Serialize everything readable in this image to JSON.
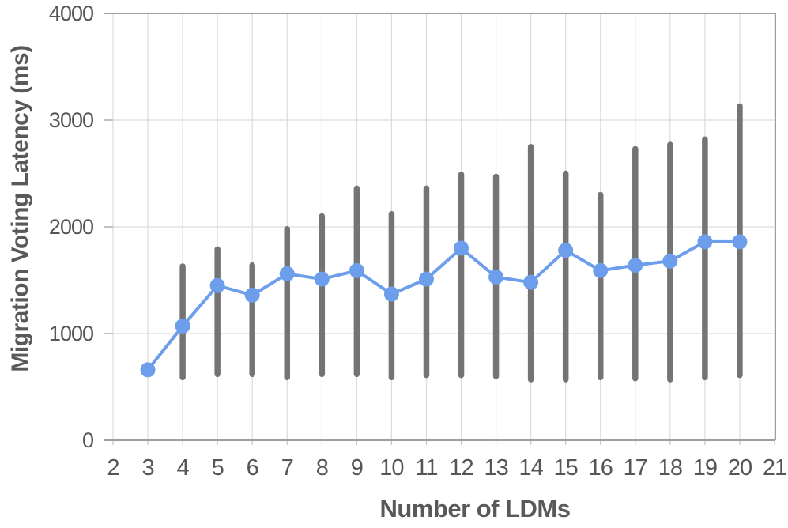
{
  "chart_data": {
    "type": "line",
    "title": "",
    "xlabel": "Number of LDMs",
    "ylabel": "Migration Voting Latency (ms)",
    "xlim": [
      2,
      21
    ],
    "ylim": [
      0,
      4000
    ],
    "x_ticks": [
      2,
      3,
      4,
      5,
      6,
      7,
      8,
      9,
      10,
      11,
      12,
      13,
      14,
      15,
      16,
      17,
      18,
      19,
      20,
      21
    ],
    "y_ticks": [
      0,
      1000,
      2000,
      3000,
      4000
    ],
    "grid": true,
    "legend": "none",
    "series": [
      {
        "name": "Migration Voting Latency",
        "marker": "circle",
        "x": [
          3,
          4,
          5,
          6,
          7,
          8,
          9,
          10,
          11,
          12,
          13,
          14,
          15,
          16,
          17,
          18,
          19,
          20
        ],
        "y": [
          660,
          1070,
          1450,
          1360,
          1560,
          1510,
          1590,
          1370,
          1510,
          1800,
          1530,
          1480,
          1780,
          1590,
          1640,
          1680,
          1860,
          1860
        ],
        "err_low": [
          null,
          590,
          620,
          620,
          590,
          620,
          620,
          590,
          610,
          610,
          600,
          570,
          570,
          590,
          580,
          570,
          590,
          610
        ],
        "err_high": [
          null,
          1630,
          1790,
          1640,
          1980,
          2100,
          2360,
          2120,
          2360,
          2490,
          2470,
          2750,
          2500,
          2300,
          2730,
          2770,
          2820,
          3130
        ]
      }
    ],
    "colors": {
      "line": "#6d9eeb",
      "marker": "#6d9eeb",
      "error_bar": "#747474",
      "gridline": "#dcdcdc",
      "border": "#9e9e9e",
      "tick_text": "#565656",
      "title_text": "#595959"
    }
  }
}
